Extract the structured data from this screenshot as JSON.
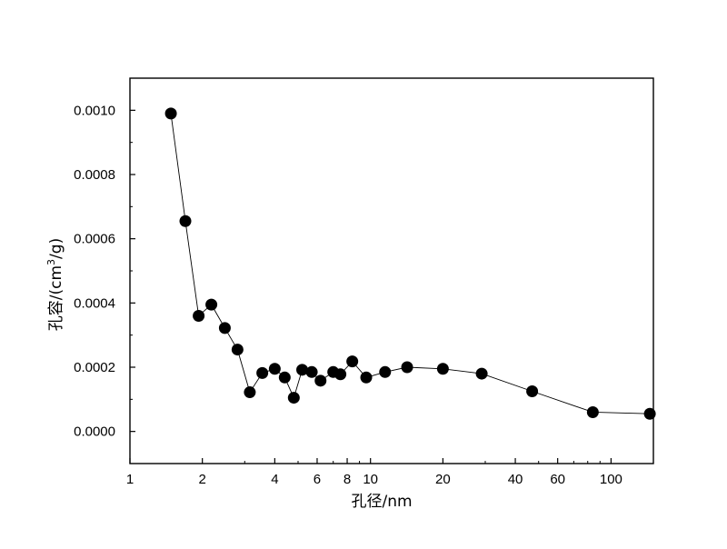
{
  "chart_data": {
    "type": "scatter",
    "xlabel": "孔径/nm",
    "ylabel_parts": {
      "prefix": "孔容/(cm",
      "sup": "3",
      "suffix": "/g)"
    },
    "x_scale": "log",
    "xlim": [
      1,
      150
    ],
    "ylim": [
      -0.0001,
      0.0011
    ],
    "x_ticks": [
      1,
      2,
      4,
      6,
      8,
      10,
      20,
      40,
      60,
      100
    ],
    "x_tick_labels": [
      "1",
      "2",
      "4",
      "6",
      "8",
      "10",
      "20",
      "40",
      "60",
      "100"
    ],
    "y_ticks": [
      0,
      0.0002,
      0.0004,
      0.0006,
      0.0008,
      0.001
    ],
    "y_tick_labels": [
      "0.0000",
      "0.0002",
      "0.0004",
      "0.0006",
      "0.0008",
      "0.0010"
    ],
    "grid": false,
    "marker_color": "#000000",
    "line_color": "#000000",
    "series": [
      {
        "x": [
          1.48,
          1.7,
          1.93,
          2.18,
          2.48,
          2.8,
          3.15,
          3.55,
          4.0,
          4.4,
          4.8,
          5.2,
          5.7,
          6.2,
          7.0,
          7.5,
          8.4,
          9.6,
          11.5,
          14.2,
          20.0,
          29.0,
          47.0,
          84.0,
          145.0
        ],
        "y": [
          0.00099,
          0.000655,
          0.00036,
          0.000395,
          0.000322,
          0.000255,
          0.000122,
          0.000182,
          0.000195,
          0.000168,
          0.000105,
          0.000192,
          0.000185,
          0.000158,
          0.000185,
          0.000178,
          0.000218,
          0.000168,
          0.000185,
          0.0002,
          0.000195,
          0.00018,
          0.000125,
          6e-05,
          5.5e-05
        ]
      }
    ]
  }
}
